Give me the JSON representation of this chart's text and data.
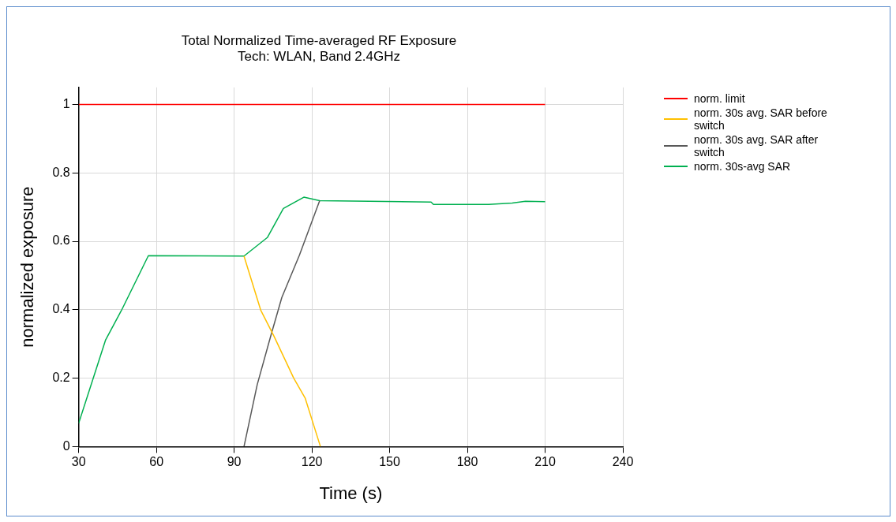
{
  "chart_data": {
    "type": "line",
    "title": "Total Normalized Time-averaged RF Exposure",
    "subtitle": "Tech: WLAN, Band 2.4GHz",
    "xlabel": "Time (s)",
    "ylabel": "normalized exposure",
    "xlim": [
      30,
      240
    ],
    "xticks": [
      30,
      60,
      90,
      120,
      150,
      180,
      210,
      240
    ],
    "ylim": [
      0,
      1.05
    ],
    "yticks": [
      0,
      0.2,
      0.4,
      0.6,
      0.8,
      1
    ],
    "grid": true,
    "legend": "top right",
    "marker": "none",
    "line_style": "solid",
    "series": [
      {
        "name": "norm. limit",
        "color": "#ff0000",
        "x": [
          30,
          210
        ],
        "values": [
          1,
          1
        ]
      },
      {
        "name": "norm. 30s avg. SAR before switch",
        "color": "#ffc000",
        "x": [
          93.8,
          100.3,
          105.3,
          113,
          117.4,
          123.3
        ],
        "values": [
          0.557,
          0.398,
          0.324,
          0.2,
          0.142,
          0
        ]
      },
      {
        "name": "norm. 30s avg. SAR after switch",
        "color": "#595959",
        "x": [
          93.8,
          98.9,
          104,
          108.4,
          115.2,
          123
        ],
        "values": [
          0,
          0.181,
          0.32,
          0.436,
          0.56,
          0.719
        ]
      },
      {
        "name": "norm. 30s-avg SAR",
        "color": "#00b050",
        "x": [
          30,
          40.4,
          46.5,
          56.9,
          93.8,
          102.8,
          109,
          116.9,
          123,
          166,
          166.9,
          188.2,
          197.3,
          202.4,
          210
        ],
        "values": [
          0.068,
          0.312,
          0.398,
          0.558,
          0.557,
          0.611,
          0.696,
          0.729,
          0.719,
          0.715,
          0.708,
          0.708,
          0.712,
          0.717,
          0.716
        ]
      }
    ]
  }
}
